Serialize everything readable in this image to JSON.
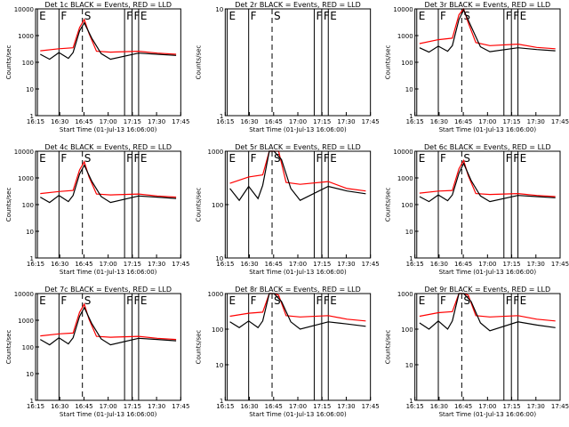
{
  "chart_data": [
    {
      "type": "line",
      "title": "Det 1c BLACK = Events, RED = LLD",
      "xlabel": "Start Time (01-Jul-13 16:06:00)",
      "ylabel": "Counts/sec",
      "yscale": "log",
      "ylim": [
        1,
        10000
      ],
      "xlim": [
        16.2,
        17.75
      ],
      "x_ticks": [
        "16:15",
        "16:30",
        "16:45",
        "17:00",
        "17:15",
        "17:30",
        "17:45"
      ],
      "y_ticks": [
        "1",
        "10",
        "100",
        "1000",
        "10000"
      ],
      "markers": [
        {
          "label": "E",
          "x": 16.22,
          "style": "solid"
        },
        {
          "label": "F",
          "x": 16.45,
          "style": "solid"
        },
        {
          "label": "S",
          "x": 16.7,
          "style": "dashed"
        },
        {
          "label": "F",
          "x": 17.15,
          "style": "solid"
        },
        {
          "label": "F",
          "x": 17.23,
          "style": "solid"
        },
        {
          "label": "E",
          "x": 17.3,
          "style": "solid"
        }
      ],
      "series": [
        {
          "color": "#ff0000",
          "x": [
            16.25,
            16.45,
            16.6,
            16.67,
            16.72,
            16.77,
            16.85,
            17.0,
            17.3,
            17.5,
            17.7
          ],
          "y": [
            270,
            320,
            350,
            2000,
            4000,
            1200,
            260,
            240,
            260,
            220,
            200
          ]
        },
        {
          "color": "#000000",
          "x": [
            16.25,
            16.35,
            16.45,
            16.55,
            16.6,
            16.67,
            16.72,
            16.8,
            16.9,
            17.0,
            17.3,
            17.5,
            17.7
          ],
          "y": [
            200,
            130,
            230,
            140,
            230,
            1500,
            3000,
            800,
            210,
            130,
            220,
            200,
            180
          ]
        }
      ]
    },
    {
      "type": "line",
      "title": "Det 2r BLACK = Events, RED = LLD",
      "xlabel": "Start Time (01-Jul-13 16:06:00)",
      "ylabel": "Counts/sec",
      "yscale": "log",
      "ylim": [
        1,
        10
      ],
      "xlim": [
        16.2,
        17.75
      ],
      "x_ticks": [
        "16:15",
        "16:30",
        "16:45",
        "17:00",
        "17:15",
        "17:30",
        "17:45"
      ],
      "y_ticks": [
        "1",
        "10"
      ],
      "markers": [
        {
          "label": "E",
          "x": 16.22,
          "style": "solid"
        },
        {
          "label": "F",
          "x": 16.45,
          "style": "solid"
        },
        {
          "label": "S",
          "x": 16.7,
          "style": "dashed"
        },
        {
          "label": "F",
          "x": 17.15,
          "style": "solid"
        },
        {
          "label": "F",
          "x": 17.23,
          "style": "solid"
        },
        {
          "label": "E",
          "x": 17.3,
          "style": "solid"
        }
      ],
      "series": []
    },
    {
      "type": "line",
      "title": "Det 3r BLACK = Events, RED = LLD",
      "xlabel": "Start Time (01-Jul-13 16:06:00)",
      "ylabel": "Counts/sec",
      "yscale": "log",
      "ylim": [
        1,
        10000
      ],
      "xlim": [
        16.2,
        17.75
      ],
      "x_ticks": [
        "16:15",
        "16:30",
        "16:45",
        "17:00",
        "17:15",
        "17:30",
        "17:45"
      ],
      "y_ticks": [
        "1",
        "10",
        "100",
        "1000",
        "10000"
      ],
      "markers": [
        {
          "label": "E",
          "x": 16.22,
          "style": "solid"
        },
        {
          "label": "F",
          "x": 16.45,
          "style": "solid"
        },
        {
          "label": "S",
          "x": 16.7,
          "style": "dashed"
        },
        {
          "label": "F",
          "x": 17.15,
          "style": "solid"
        },
        {
          "label": "F",
          "x": 17.23,
          "style": "solid"
        },
        {
          "label": "E",
          "x": 17.3,
          "style": "solid"
        }
      ],
      "series": [
        {
          "color": "#ff0000",
          "x": [
            16.25,
            16.45,
            16.6,
            16.67,
            16.72,
            16.77,
            16.85,
            17.0,
            17.3,
            17.5,
            17.7
          ],
          "y": [
            500,
            700,
            800,
            6000,
            12000,
            3000,
            550,
            420,
            480,
            360,
            320
          ]
        },
        {
          "color": "#000000",
          "x": [
            16.25,
            16.35,
            16.45,
            16.55,
            16.6,
            16.67,
            16.72,
            16.8,
            16.9,
            17.0,
            17.3,
            17.5,
            17.7
          ],
          "y": [
            350,
            240,
            400,
            260,
            420,
            4000,
            9000,
            2200,
            380,
            250,
            350,
            300,
            270
          ]
        }
      ]
    },
    {
      "type": "line",
      "title": "Det 4c BLACK = Events, RED = LLD",
      "xlabel": "Start Time (01-Jul-13 16:06:00)",
      "ylabel": "Counts/sec",
      "yscale": "log",
      "ylim": [
        1,
        10000
      ],
      "xlim": [
        16.2,
        17.75
      ],
      "x_ticks": [
        "16:15",
        "16:30",
        "16:45",
        "17:00",
        "17:15",
        "17:30",
        "17:45"
      ],
      "y_ticks": [
        "1",
        "10",
        "100",
        "1000",
        "10000"
      ],
      "markers": [
        {
          "label": "E",
          "x": 16.22,
          "style": "solid"
        },
        {
          "label": "F",
          "x": 16.45,
          "style": "solid"
        },
        {
          "label": "S",
          "x": 16.7,
          "style": "dashed"
        },
        {
          "label": "F",
          "x": 17.15,
          "style": "solid"
        },
        {
          "label": "F",
          "x": 17.23,
          "style": "solid"
        },
        {
          "label": "E",
          "x": 17.3,
          "style": "solid"
        }
      ],
      "series": [
        {
          "color": "#ff0000",
          "x": [
            16.25,
            16.45,
            16.6,
            16.67,
            16.72,
            16.77,
            16.85,
            17.0,
            17.3,
            17.5,
            17.7
          ],
          "y": [
            260,
            310,
            340,
            2000,
            4000,
            1100,
            250,
            230,
            250,
            210,
            190
          ]
        },
        {
          "color": "#000000",
          "x": [
            16.25,
            16.35,
            16.45,
            16.55,
            16.6,
            16.67,
            16.72,
            16.8,
            16.9,
            17.0,
            17.3,
            17.5,
            17.7
          ],
          "y": [
            190,
            120,
            220,
            130,
            220,
            1400,
            3000,
            750,
            200,
            120,
            210,
            190,
            170
          ]
        }
      ]
    },
    {
      "type": "line",
      "title": "Det 5r BLACK = Events, RED = LLD",
      "xlabel": "Start Time (01-Jul-13 16:06:00)",
      "ylabel": "Counts/sec",
      "yscale": "log",
      "ylim": [
        10,
        1000
      ],
      "xlim": [
        16.2,
        17.75
      ],
      "x_ticks": [
        "16:15",
        "16:30",
        "16:45",
        "17:00",
        "17:15",
        "17:30",
        "17:45"
      ],
      "y_ticks": [
        "10",
        "100",
        "1000"
      ],
      "markers": [
        {
          "label": "E",
          "x": 16.22,
          "style": "solid"
        },
        {
          "label": "F",
          "x": 16.45,
          "style": "solid"
        },
        {
          "label": "S",
          "x": 16.7,
          "style": "dashed"
        },
        {
          "label": "F",
          "x": 17.15,
          "style": "solid"
        },
        {
          "label": "F",
          "x": 17.23,
          "style": "solid"
        },
        {
          "label": "E",
          "x": 17.3,
          "style": "solid"
        }
      ],
      "series": [
        {
          "color": "#ff0000",
          "x": [
            16.25,
            16.45,
            16.6,
            16.67,
            16.72,
            16.77,
            16.85,
            17.0,
            17.3,
            17.5,
            17.7
          ],
          "y": [
            250,
            330,
            360,
            2000,
            3000,
            1000,
            260,
            240,
            270,
            200,
            180
          ]
        },
        {
          "color": "#000000",
          "x": [
            16.25,
            16.35,
            16.45,
            16.55,
            16.6,
            16.67,
            16.72,
            16.8,
            16.9,
            17.0,
            17.3,
            17.5,
            17.7
          ],
          "y": [
            200,
            120,
            220,
            130,
            230,
            1200,
            2500,
            700,
            200,
            120,
            220,
            180,
            160
          ]
        }
      ]
    },
    {
      "type": "line",
      "title": "Det 6c BLACK = Events, RED = LLD",
      "xlabel": "Start Time (01-Jul-13 16:06:00)",
      "ylabel": "Counts/sec",
      "yscale": "log",
      "ylim": [
        1,
        10000
      ],
      "xlim": [
        16.2,
        17.75
      ],
      "x_ticks": [
        "16:15",
        "16:30",
        "16:45",
        "17:00",
        "17:15",
        "17:30",
        "17:45"
      ],
      "y_ticks": [
        "1",
        "10",
        "100",
        "1000",
        "10000"
      ],
      "markers": [
        {
          "label": "E",
          "x": 16.22,
          "style": "solid"
        },
        {
          "label": "F",
          "x": 16.45,
          "style": "solid"
        },
        {
          "label": "S",
          "x": 16.7,
          "style": "dashed"
        },
        {
          "label": "F",
          "x": 17.15,
          "style": "solid"
        },
        {
          "label": "F",
          "x": 17.23,
          "style": "solid"
        },
        {
          "label": "E",
          "x": 17.3,
          "style": "solid"
        }
      ],
      "series": [
        {
          "color": "#ff0000",
          "x": [
            16.25,
            16.45,
            16.6,
            16.67,
            16.72,
            16.77,
            16.85,
            17.0,
            17.3,
            17.5,
            17.7
          ],
          "y": [
            270,
            320,
            340,
            2200,
            4500,
            1200,
            260,
            240,
            260,
            220,
            200
          ]
        },
        {
          "color": "#000000",
          "x": [
            16.25,
            16.35,
            16.45,
            16.55,
            16.6,
            16.67,
            16.72,
            16.8,
            16.9,
            17.0,
            17.3,
            17.5,
            17.7
          ],
          "y": [
            200,
            130,
            230,
            140,
            230,
            1500,
            3500,
            800,
            210,
            130,
            220,
            200,
            180
          ]
        }
      ]
    },
    {
      "type": "line",
      "title": "Det 7c BLACK = Events, RED = LLD",
      "xlabel": "Start Time (01-Jul-13 16:06:00)",
      "ylabel": "Counts/sec",
      "yscale": "log",
      "ylim": [
        1,
        10000
      ],
      "xlim": [
        16.2,
        17.75
      ],
      "x_ticks": [
        "16:15",
        "16:30",
        "16:45",
        "17:00",
        "17:15",
        "17:30",
        "17:45"
      ],
      "y_ticks": [
        "1",
        "10",
        "100",
        "1000",
        "10000"
      ],
      "markers": [
        {
          "label": "E",
          "x": 16.22,
          "style": "solid"
        },
        {
          "label": "F",
          "x": 16.45,
          "style": "solid"
        },
        {
          "label": "S",
          "x": 16.7,
          "style": "dashed"
        },
        {
          "label": "F",
          "x": 17.15,
          "style": "solid"
        },
        {
          "label": "F",
          "x": 17.23,
          "style": "solid"
        },
        {
          "label": "E",
          "x": 17.3,
          "style": "solid"
        }
      ],
      "series": [
        {
          "color": "#ff0000",
          "x": [
            16.25,
            16.45,
            16.6,
            16.67,
            16.72,
            16.77,
            16.85,
            17.0,
            17.3,
            17.5,
            17.7
          ],
          "y": [
            260,
            310,
            330,
            2000,
            4000,
            1100,
            250,
            230,
            250,
            210,
            190
          ]
        },
        {
          "color": "#000000",
          "x": [
            16.25,
            16.35,
            16.45,
            16.55,
            16.6,
            16.67,
            16.72,
            16.8,
            16.9,
            17.0,
            17.3,
            17.5,
            17.7
          ],
          "y": [
            190,
            120,
            220,
            130,
            220,
            1400,
            3000,
            750,
            200,
            120,
            210,
            190,
            170
          ]
        }
      ]
    },
    {
      "type": "line",
      "title": "Det 8r BLACK = Events, RED = LLD",
      "xlabel": "Start Time (01-Jul-13 16:06:00)",
      "ylabel": "Counts/sec",
      "yscale": "log",
      "ylim": [
        1,
        1000
      ],
      "xlim": [
        16.2,
        17.75
      ],
      "x_ticks": [
        "16:15",
        "16:30",
        "16:45",
        "17:00",
        "17:15",
        "17:30",
        "17:45"
      ],
      "y_ticks": [
        "1",
        "10",
        "100",
        "1000"
      ],
      "markers": [
        {
          "label": "E",
          "x": 16.22,
          "style": "solid"
        },
        {
          "label": "F",
          "x": 16.45,
          "style": "solid"
        },
        {
          "label": "S",
          "x": 16.7,
          "style": "dashed"
        },
        {
          "label": "F",
          "x": 17.15,
          "style": "solid"
        },
        {
          "label": "F",
          "x": 17.23,
          "style": "solid"
        },
        {
          "label": "E",
          "x": 17.3,
          "style": "solid"
        }
      ],
      "series": [
        {
          "color": "#ff0000",
          "x": [
            16.25,
            16.45,
            16.6,
            16.67,
            16.72,
            16.77,
            16.85,
            17.0,
            17.3,
            17.5,
            17.7
          ],
          "y": [
            230,
            280,
            300,
            1500,
            2000,
            900,
            240,
            220,
            240,
            190,
            170
          ]
        },
        {
          "color": "#000000",
          "x": [
            16.25,
            16.35,
            16.45,
            16.55,
            16.6,
            16.67,
            16.72,
            16.8,
            16.9,
            17.0,
            17.3,
            17.5,
            17.7
          ],
          "y": [
            160,
            110,
            170,
            110,
            170,
            1100,
            1800,
            600,
            160,
            100,
            160,
            140,
            120
          ]
        }
      ]
    },
    {
      "type": "line",
      "title": "Det 9r BLACK = Events, RED = LLD",
      "xlabel": "Start Time (01-Jul-13 16:06:00)",
      "ylabel": "Counts/sec",
      "yscale": "log",
      "ylim": [
        1,
        1000
      ],
      "xlim": [
        16.2,
        17.75
      ],
      "x_ticks": [
        "16:15",
        "16:30",
        "16:45",
        "17:00",
        "17:15",
        "17:30",
        "17:45"
      ],
      "y_ticks": [
        "1",
        "10",
        "100",
        "1000"
      ],
      "markers": [
        {
          "label": "E",
          "x": 16.22,
          "style": "solid"
        },
        {
          "label": "F",
          "x": 16.45,
          "style": "solid"
        },
        {
          "label": "S",
          "x": 16.7,
          "style": "dashed"
        },
        {
          "label": "F",
          "x": 17.15,
          "style": "solid"
        },
        {
          "label": "F",
          "x": 17.23,
          "style": "solid"
        },
        {
          "label": "E",
          "x": 17.3,
          "style": "solid"
        }
      ],
      "series": [
        {
          "color": "#ff0000",
          "x": [
            16.25,
            16.45,
            16.6,
            16.67,
            16.72,
            16.77,
            16.85,
            17.0,
            17.3,
            17.5,
            17.7
          ],
          "y": [
            230,
            290,
            310,
            1500,
            2000,
            900,
            240,
            220,
            240,
            190,
            170
          ]
        },
        {
          "color": "#000000",
          "x": [
            16.25,
            16.35,
            16.45,
            16.55,
            16.6,
            16.67,
            16.72,
            16.8,
            16.9,
            17.0,
            17.3,
            17.5,
            17.7
          ],
          "y": [
            150,
            100,
            170,
            100,
            170,
            1100,
            1800,
            600,
            150,
            90,
            160,
            130,
            110
          ]
        }
      ]
    }
  ]
}
